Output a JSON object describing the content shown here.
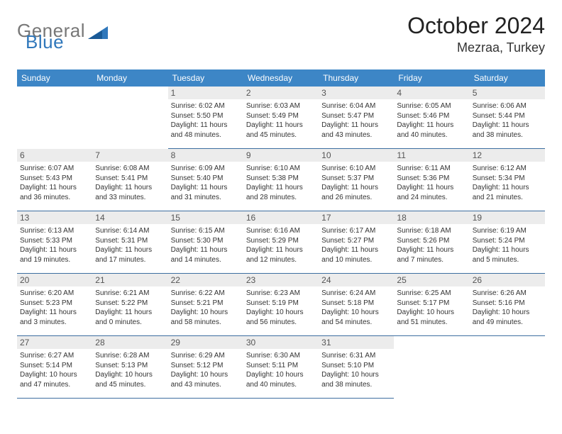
{
  "brand": {
    "general": "General",
    "blue": "Blue"
  },
  "title": "October 2024",
  "location": "Mezraa, Turkey",
  "colors": {
    "header_bar": "#3d86c6",
    "day_num_bg": "#ececec",
    "cell_border": "#3d6ea0",
    "brand_gray": "#777777",
    "brand_blue": "#2f77bb"
  },
  "dow": [
    "Sunday",
    "Monday",
    "Tuesday",
    "Wednesday",
    "Thursday",
    "Friday",
    "Saturday"
  ],
  "weeks": [
    [
      {
        "n": "",
        "t": ""
      },
      {
        "n": "",
        "t": ""
      },
      {
        "n": "1",
        "t": "Sunrise: 6:02 AM\nSunset: 5:50 PM\nDaylight: 11 hours and 48 minutes."
      },
      {
        "n": "2",
        "t": "Sunrise: 6:03 AM\nSunset: 5:49 PM\nDaylight: 11 hours and 45 minutes."
      },
      {
        "n": "3",
        "t": "Sunrise: 6:04 AM\nSunset: 5:47 PM\nDaylight: 11 hours and 43 minutes."
      },
      {
        "n": "4",
        "t": "Sunrise: 6:05 AM\nSunset: 5:46 PM\nDaylight: 11 hours and 40 minutes."
      },
      {
        "n": "5",
        "t": "Sunrise: 6:06 AM\nSunset: 5:44 PM\nDaylight: 11 hours and 38 minutes."
      }
    ],
    [
      {
        "n": "6",
        "t": "Sunrise: 6:07 AM\nSunset: 5:43 PM\nDaylight: 11 hours and 36 minutes."
      },
      {
        "n": "7",
        "t": "Sunrise: 6:08 AM\nSunset: 5:41 PM\nDaylight: 11 hours and 33 minutes."
      },
      {
        "n": "8",
        "t": "Sunrise: 6:09 AM\nSunset: 5:40 PM\nDaylight: 11 hours and 31 minutes."
      },
      {
        "n": "9",
        "t": "Sunrise: 6:10 AM\nSunset: 5:38 PM\nDaylight: 11 hours and 28 minutes."
      },
      {
        "n": "10",
        "t": "Sunrise: 6:10 AM\nSunset: 5:37 PM\nDaylight: 11 hours and 26 minutes."
      },
      {
        "n": "11",
        "t": "Sunrise: 6:11 AM\nSunset: 5:36 PM\nDaylight: 11 hours and 24 minutes."
      },
      {
        "n": "12",
        "t": "Sunrise: 6:12 AM\nSunset: 5:34 PM\nDaylight: 11 hours and 21 minutes."
      }
    ],
    [
      {
        "n": "13",
        "t": "Sunrise: 6:13 AM\nSunset: 5:33 PM\nDaylight: 11 hours and 19 minutes."
      },
      {
        "n": "14",
        "t": "Sunrise: 6:14 AM\nSunset: 5:31 PM\nDaylight: 11 hours and 17 minutes."
      },
      {
        "n": "15",
        "t": "Sunrise: 6:15 AM\nSunset: 5:30 PM\nDaylight: 11 hours and 14 minutes."
      },
      {
        "n": "16",
        "t": "Sunrise: 6:16 AM\nSunset: 5:29 PM\nDaylight: 11 hours and 12 minutes."
      },
      {
        "n": "17",
        "t": "Sunrise: 6:17 AM\nSunset: 5:27 PM\nDaylight: 11 hours and 10 minutes."
      },
      {
        "n": "18",
        "t": "Sunrise: 6:18 AM\nSunset: 5:26 PM\nDaylight: 11 hours and 7 minutes."
      },
      {
        "n": "19",
        "t": "Sunrise: 6:19 AM\nSunset: 5:24 PM\nDaylight: 11 hours and 5 minutes."
      }
    ],
    [
      {
        "n": "20",
        "t": "Sunrise: 6:20 AM\nSunset: 5:23 PM\nDaylight: 11 hours and 3 minutes."
      },
      {
        "n": "21",
        "t": "Sunrise: 6:21 AM\nSunset: 5:22 PM\nDaylight: 11 hours and 0 minutes."
      },
      {
        "n": "22",
        "t": "Sunrise: 6:22 AM\nSunset: 5:21 PM\nDaylight: 10 hours and 58 minutes."
      },
      {
        "n": "23",
        "t": "Sunrise: 6:23 AM\nSunset: 5:19 PM\nDaylight: 10 hours and 56 minutes."
      },
      {
        "n": "24",
        "t": "Sunrise: 6:24 AM\nSunset: 5:18 PM\nDaylight: 10 hours and 54 minutes."
      },
      {
        "n": "25",
        "t": "Sunrise: 6:25 AM\nSunset: 5:17 PM\nDaylight: 10 hours and 51 minutes."
      },
      {
        "n": "26",
        "t": "Sunrise: 6:26 AM\nSunset: 5:16 PM\nDaylight: 10 hours and 49 minutes."
      }
    ],
    [
      {
        "n": "27",
        "t": "Sunrise: 6:27 AM\nSunset: 5:14 PM\nDaylight: 10 hours and 47 minutes."
      },
      {
        "n": "28",
        "t": "Sunrise: 6:28 AM\nSunset: 5:13 PM\nDaylight: 10 hours and 45 minutes."
      },
      {
        "n": "29",
        "t": "Sunrise: 6:29 AM\nSunset: 5:12 PM\nDaylight: 10 hours and 43 minutes."
      },
      {
        "n": "30",
        "t": "Sunrise: 6:30 AM\nSunset: 5:11 PM\nDaylight: 10 hours and 40 minutes."
      },
      {
        "n": "31",
        "t": "Sunrise: 6:31 AM\nSunset: 5:10 PM\nDaylight: 10 hours and 38 minutes."
      },
      {
        "n": "",
        "t": ""
      },
      {
        "n": "",
        "t": ""
      }
    ]
  ]
}
